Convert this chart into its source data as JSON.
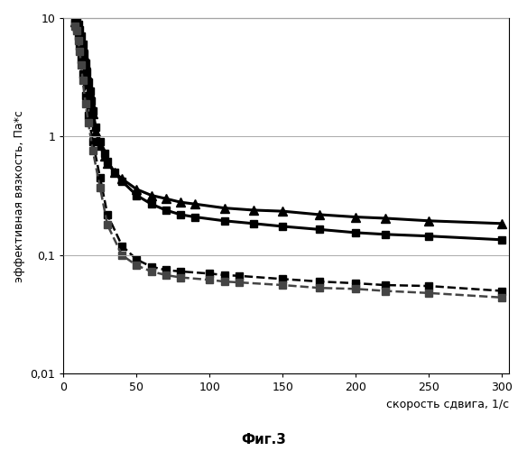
{
  "title": "Фиг.3",
  "ylabel": "эффективная вязкость, Па*с",
  "xlabel": "скорость сдвига, 1/с",
  "ylim": [
    0.01,
    10
  ],
  "xlim": [
    0,
    305
  ],
  "xticks": [
    0,
    50,
    100,
    150,
    200,
    250,
    300
  ],
  "yticks": [
    0.01,
    0.1,
    1,
    10
  ],
  "ytick_labels": [
    "0,01",
    "0,1",
    "1",
    "10"
  ],
  "xtick_labels": [
    "0",
    "50",
    "100",
    "150",
    "200",
    "250",
    "300"
  ],
  "series": [
    {
      "name": "solid_square",
      "style": "solid",
      "marker": "s",
      "color": "#000000",
      "linewidth": 2.2,
      "markersize": 6,
      "x": [
        8,
        9,
        10,
        11,
        12,
        13,
        14,
        15,
        16,
        17,
        18,
        19,
        20,
        22,
        25,
        28,
        30,
        35,
        40,
        50,
        60,
        70,
        80,
        90,
        110,
        130,
        150,
        175,
        200,
        220,
        250,
        300
      ],
      "y": [
        9.8,
        9.5,
        8.8,
        8.0,
        7.0,
        6.0,
        5.0,
        4.2,
        3.5,
        2.9,
        2.4,
        2.0,
        1.65,
        1.2,
        0.9,
        0.72,
        0.62,
        0.5,
        0.42,
        0.32,
        0.27,
        0.24,
        0.22,
        0.21,
        0.195,
        0.185,
        0.175,
        0.165,
        0.155,
        0.15,
        0.145,
        0.135
      ]
    },
    {
      "name": "solid_triangle",
      "style": "solid",
      "marker": "^",
      "color": "#000000",
      "linewidth": 2.2,
      "markersize": 7,
      "x": [
        8,
        9,
        10,
        11,
        12,
        13,
        14,
        15,
        16,
        17,
        18,
        19,
        20,
        22,
        25,
        28,
        30,
        35,
        40,
        50,
        60,
        70,
        80,
        90,
        110,
        130,
        150,
        175,
        200,
        220,
        250,
        300
      ],
      "y": [
        9.3,
        9.0,
        8.4,
        7.7,
        6.8,
        5.8,
        4.9,
        4.1,
        3.4,
        2.8,
        2.3,
        1.9,
        1.55,
        1.1,
        0.85,
        0.68,
        0.6,
        0.5,
        0.44,
        0.36,
        0.32,
        0.3,
        0.28,
        0.27,
        0.25,
        0.24,
        0.235,
        0.22,
        0.21,
        0.205,
        0.195,
        0.185
      ]
    },
    {
      "name": "dashed_square1",
      "style": "dashed",
      "marker": "s",
      "color": "#000000",
      "linewidth": 1.8,
      "markersize": 6,
      "x": [
        8,
        9,
        10,
        11,
        12,
        13,
        15,
        17,
        20,
        25,
        30,
        40,
        50,
        60,
        70,
        80,
        100,
        110,
        120,
        150,
        175,
        200,
        220,
        250,
        300
      ],
      "y": [
        9.0,
        8.2,
        7.0,
        5.8,
        4.5,
        3.4,
        2.2,
        1.5,
        0.9,
        0.45,
        0.22,
        0.12,
        0.092,
        0.08,
        0.075,
        0.073,
        0.07,
        0.068,
        0.067,
        0.063,
        0.06,
        0.058,
        0.056,
        0.055,
        0.05
      ]
    },
    {
      "name": "dashed_square2",
      "style": "dashed",
      "marker": "s",
      "color": "#444444",
      "linewidth": 1.8,
      "markersize": 6,
      "x": [
        8,
        9,
        10,
        11,
        12,
        13,
        15,
        17,
        20,
        25,
        30,
        40,
        50,
        60,
        70,
        80,
        100,
        110,
        120,
        150,
        175,
        200,
        220,
        250,
        300
      ],
      "y": [
        8.5,
        7.8,
        6.5,
        5.2,
        4.0,
        3.0,
        1.9,
        1.3,
        0.76,
        0.37,
        0.18,
        0.1,
        0.082,
        0.073,
        0.068,
        0.065,
        0.062,
        0.06,
        0.059,
        0.056,
        0.053,
        0.052,
        0.05,
        0.048,
        0.044
      ]
    }
  ],
  "background_color": "#ffffff",
  "grid_color": "#aaaaaa",
  "font_color": "#000000"
}
